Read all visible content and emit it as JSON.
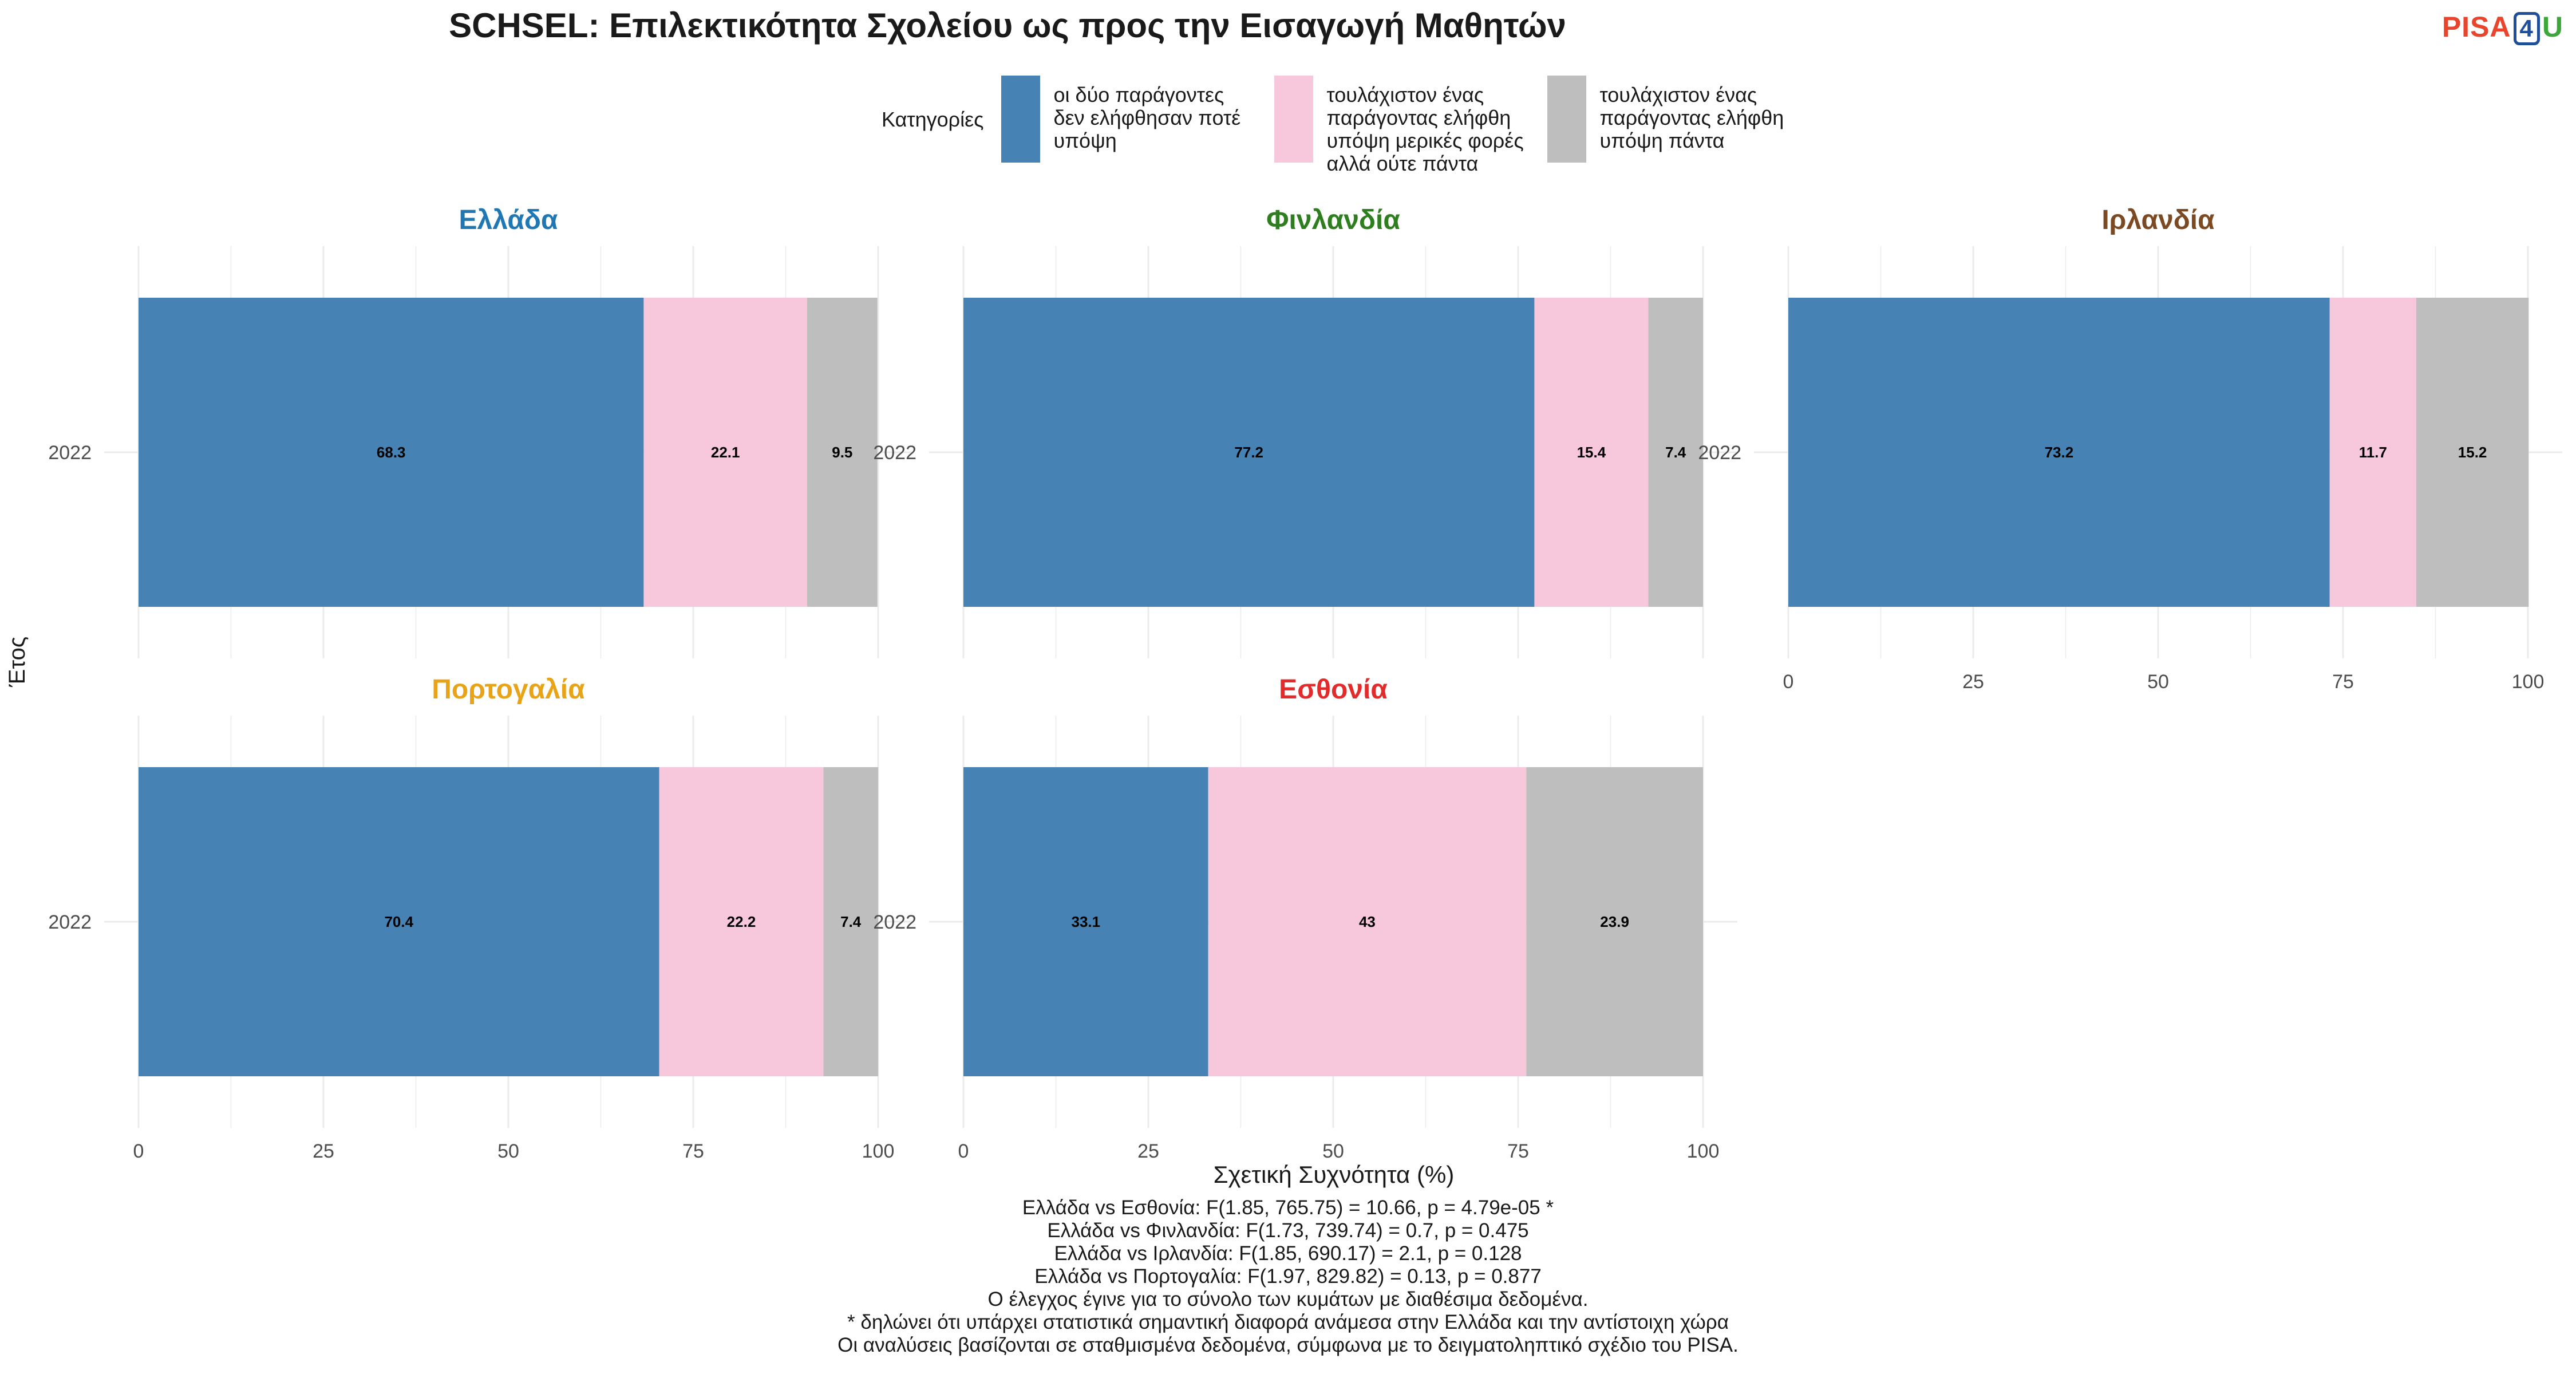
{
  "title": "SCHSEL: Επιλεκτικότητα Σχολείου ως προς την Εισαγωγή Μαθητών",
  "logo": {
    "pre": "PISA",
    "num": "4",
    "post": "U"
  },
  "legend": {
    "title": "Κατηγορίες",
    "items": [
      {
        "label": "οι δύο παράγοντες δεν ελήφθησαν ποτέ υπόψη",
        "color": "#4682b4"
      },
      {
        "label": "τουλάχιστον ένας παράγοντας ελήφθη υπόψη μερικές φορές αλλά ούτε πάντα",
        "color": "#f7c7dc"
      },
      {
        "label": "τουλάχιστον ένας παράγοντας ελήφθη υπόψη πάντα",
        "color": "#bebebe"
      }
    ]
  },
  "chart_data": {
    "type": "bar",
    "orientation": "horizontal",
    "stacked": true,
    "xlabel": "Σχετική Συχνότητα (%)",
    "ylabel": "Έτος",
    "xlim": [
      0,
      100
    ],
    "xticks": [
      0,
      25,
      50,
      75,
      100
    ],
    "categories": [
      "2022"
    ],
    "panels": [
      {
        "name": "Ελλάδα",
        "color": "#1f77b4",
        "values": [
          68.3,
          22.1,
          9.5
        ]
      },
      {
        "name": "Φινλανδία",
        "color": "#2e7d1f",
        "values": [
          77.2,
          15.4,
          7.4
        ]
      },
      {
        "name": "Ιρλανδία",
        "color": "#7b4a23",
        "values": [
          73.2,
          11.7,
          15.2
        ]
      },
      {
        "name": "Πορτογαλία",
        "color": "#e8a317",
        "values": [
          70.4,
          22.2,
          7.4
        ]
      },
      {
        "name": "Εσθονία",
        "color": "#e32b2b",
        "values": [
          33.1,
          43,
          23.9
        ]
      }
    ]
  },
  "notes": [
    "Ελλάδα vs Εσθονία: F(1.85, 765.75) = 10.66, p = 4.79e-05 *",
    "Ελλάδα vs Φινλανδία: F(1.73, 739.74) = 0.7, p = 0.475",
    "Ελλάδα vs Ιρλανδία: F(1.85, 690.17) = 2.1, p = 0.128",
    "Ελλάδα vs Πορτογαλία: F(1.97, 829.82) = 0.13, p = 0.877",
    "Ο έλεγχος έγινε για το σύνολο των κυμάτων με διαθέσιμα δεδομένα.",
    "* δηλώνει ότι υπάρχει στατιστικά σημαντική διαφορά ανάμεσα στην Ελλάδα και την αντίστοιχη χώρα",
    "Οι αναλύσεις βασίζονται σε σταθμισμένα δεδομένα, σύμφωνα με το δειγματοληπτικό σχέδιο του PISA."
  ]
}
